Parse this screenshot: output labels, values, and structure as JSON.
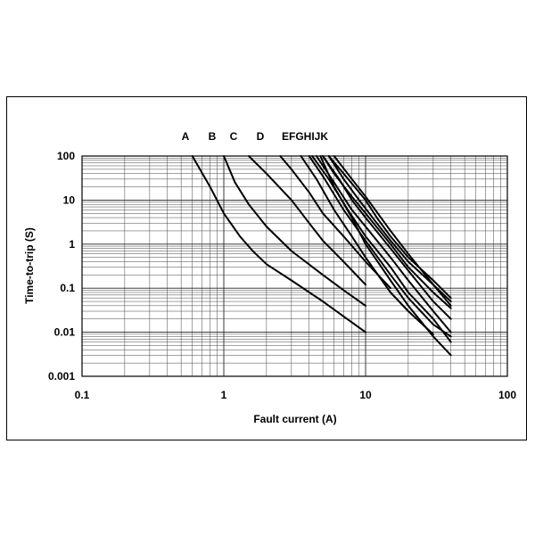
{
  "chart_data": {
    "type": "line",
    "xlabel": "Fault current (A)",
    "ylabel": "Time-to-trip (S)",
    "x_scale": "log",
    "y_scale": "log",
    "xlim": [
      0.1,
      100
    ],
    "ylim": [
      0.001,
      100
    ],
    "x_ticks": [
      0.1,
      1,
      10,
      100
    ],
    "x_tick_labels": [
      "0.1",
      "1",
      "10",
      "100"
    ],
    "y_ticks": [
      0.001,
      0.01,
      0.1,
      1,
      10,
      100
    ],
    "y_tick_labels": [
      "0.001",
      "0.01",
      "0.1",
      "1",
      "10",
      "100"
    ],
    "grid": true,
    "curve_labels": [
      "A",
      "B",
      "C",
      "D",
      "EFGHIJK"
    ],
    "series": [
      {
        "x": [
          0.6,
          0.8,
          1.0,
          1.3,
          1.6,
          2.0,
          3.0,
          5.0,
          10
        ],
        "y": [
          100,
          20,
          5,
          1.5,
          0.7,
          0.35,
          0.15,
          0.05,
          0.01
        ]
      },
      {
        "x": [
          1.0,
          1.2,
          1.5,
          2.0,
          3.0,
          5.0,
          7.0,
          10
        ],
        "y": [
          100,
          25,
          8,
          2.5,
          0.7,
          0.2,
          0.09,
          0.04
        ]
      },
      {
        "x": [
          1.5,
          2.0,
          3.0,
          4.0,
          5.0,
          7.0,
          10
        ],
        "y": [
          100,
          40,
          10,
          3,
          1.2,
          0.4,
          0.12
        ]
      },
      {
        "x": [
          2.5,
          3.0,
          4.0,
          5.0,
          7.0,
          10,
          15
        ],
        "y": [
          100,
          50,
          15,
          5,
          1.5,
          0.4,
          0.1
        ]
      },
      {
        "x": [
          3.5,
          4.5,
          6.0,
          8.0,
          10,
          15,
          20,
          30
        ],
        "y": [
          100,
          30,
          6,
          1.5,
          0.5,
          0.08,
          0.03,
          0.009
        ]
      },
      {
        "x": [
          4.0,
          5.0,
          7.0,
          10,
          15,
          20,
          30,
          40
        ],
        "y": [
          100,
          35,
          6,
          1.2,
          0.2,
          0.06,
          0.015,
          0.008
        ]
      },
      {
        "x": [
          4.2,
          5.5,
          7.5,
          10,
          15,
          20,
          30,
          40
        ],
        "y": [
          100,
          30,
          6,
          1.5,
          0.3,
          0.08,
          0.02,
          0.006
        ]
      },
      {
        "x": [
          4.5,
          6.0,
          8.0,
          10,
          15,
          20,
          30,
          40
        ],
        "y": [
          100,
          25,
          6,
          2.5,
          0.5,
          0.15,
          0.03,
          0.01
        ]
      },
      {
        "x": [
          5.0,
          6.5,
          8.0,
          10,
          15,
          20,
          30,
          40
        ],
        "y": [
          100,
          30,
          10,
          4,
          0.8,
          0.25,
          0.05,
          0.02
        ]
      },
      {
        "x": [
          5.0,
          6.0,
          8.0,
          10,
          15,
          20,
          30,
          40
        ],
        "y": [
          100,
          40,
          12,
          5,
          1.0,
          0.3,
          0.08,
          0.035
        ]
      },
      {
        "x": [
          5.5,
          7.0,
          9.0,
          12,
          15,
          20,
          30,
          40
        ],
        "y": [
          100,
          30,
          10,
          3,
          1.2,
          0.4,
          0.12,
          0.05
        ]
      },
      {
        "x": [
          5.5,
          7.0,
          10,
          12,
          15,
          20,
          30,
          40
        ],
        "y": [
          100,
          40,
          10,
          4,
          1.5,
          0.5,
          0.15,
          0.06
        ]
      },
      {
        "x": [
          6.0,
          8.0,
          10,
          15,
          20,
          30,
          40
        ],
        "y": [
          100,
          30,
          12,
          2,
          0.6,
          0.12,
          0.04
        ]
      },
      {
        "x": [
          4.8,
          6.0,
          8.0,
          10,
          15,
          20,
          30,
          40
        ],
        "y": [
          100,
          20,
          4,
          1,
          0.15,
          0.04,
          0.008,
          0.003
        ]
      }
    ]
  }
}
